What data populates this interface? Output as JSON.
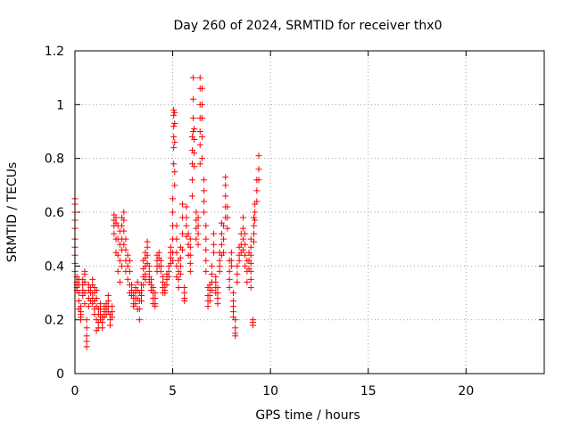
{
  "chart_data": {
    "type": "scatter",
    "title": "Day 260 of 2024, SRMTID for receiver thx0",
    "xlabel": "GPS time / hours",
    "ylabel": "SRMTID / TECUs",
    "xlim": [
      0,
      24
    ],
    "ylim": [
      0,
      1.2
    ],
    "x_ticks": [
      0,
      5,
      10,
      15,
      20
    ],
    "x_tick_labels": [
      "0",
      "5",
      "10",
      "15",
      "20"
    ],
    "y_ticks": [
      0,
      0.2,
      0.4,
      0.6,
      0.8,
      1.0,
      1.2
    ],
    "y_tick_labels": [
      "0",
      "0.2",
      "0.4",
      "0.6",
      "0.8",
      "1",
      "1.2"
    ],
    "grid": true,
    "marker": "+",
    "series": [
      {
        "name": "SRMTID",
        "color": "#ff0000",
        "clusters": [
          {
            "x": 0.0,
            "values": [
              0.65,
              0.63,
              0.6,
              0.57,
              0.54,
              0.5,
              0.47,
              0.44,
              0.41,
              0.38
            ]
          },
          {
            "x": 0.1,
            "values": [
              0.36,
              0.34,
              0.33,
              0.32,
              0.31
            ]
          },
          {
            "x": 0.2,
            "values": [
              0.35,
              0.33,
              0.3,
              0.27,
              0.24
            ]
          },
          {
            "x": 0.3,
            "values": [
              0.25,
              0.22,
              0.2,
              0.21,
              0.23
            ]
          },
          {
            "x": 0.4,
            "values": [
              0.29,
              0.31,
              0.33,
              0.35
            ]
          },
          {
            "x": 0.5,
            "values": [
              0.38,
              0.37,
              0.34,
              0.3,
              0.26
            ]
          },
          {
            "x": 0.6,
            "values": [
              0.2,
              0.17,
              0.14,
              0.12,
              0.1
            ]
          },
          {
            "x": 0.7,
            "values": [
              0.33,
              0.31,
              0.28,
              0.25
            ]
          },
          {
            "x": 0.8,
            "values": [
              0.32,
              0.3,
              0.27
            ]
          },
          {
            "x": 0.9,
            "values": [
              0.35,
              0.33,
              0.3,
              0.28,
              0.26
            ]
          },
          {
            "x": 1.0,
            "values": [
              0.32,
              0.3,
              0.27,
              0.24,
              0.22
            ]
          },
          {
            "x": 1.1,
            "values": [
              0.31,
              0.28,
              0.25,
              0.2,
              0.16
            ]
          },
          {
            "x": 1.2,
            "values": [
              0.24,
              0.22,
              0.19,
              0.17
            ]
          },
          {
            "x": 1.3,
            "values": [
              0.26,
              0.24,
              0.22,
              0.2
            ]
          },
          {
            "x": 1.4,
            "values": [
              0.21,
              0.19,
              0.17
            ]
          },
          {
            "x": 1.5,
            "values": [
              0.25,
              0.23,
              0.21
            ]
          },
          {
            "x": 1.6,
            "values": [
              0.26,
              0.24,
              0.22
            ]
          },
          {
            "x": 1.7,
            "values": [
              0.29,
              0.27,
              0.25,
              0.23
            ]
          },
          {
            "x": 1.8,
            "values": [
              0.22,
              0.2,
              0.18
            ]
          },
          {
            "x": 1.9,
            "values": [
              0.25,
              0.23,
              0.21
            ]
          },
          {
            "x": 2.0,
            "values": [
              0.59,
              0.57,
              0.55,
              0.52
            ]
          },
          {
            "x": 2.1,
            "values": [
              0.58,
              0.56,
              0.5,
              0.45
            ]
          },
          {
            "x": 2.2,
            "values": [
              0.55,
              0.5,
              0.44,
              0.38
            ]
          },
          {
            "x": 2.3,
            "values": [
              0.53,
              0.48,
              0.42,
              0.34
            ]
          },
          {
            "x": 2.4,
            "values": [
              0.58,
              0.55,
              0.5,
              0.46,
              0.4
            ]
          },
          {
            "x": 2.5,
            "values": [
              0.6,
              0.57,
              0.53,
              0.48
            ]
          },
          {
            "x": 2.6,
            "values": [
              0.5,
              0.46,
              0.42,
              0.38
            ]
          },
          {
            "x": 2.7,
            "values": [
              0.44,
              0.4,
              0.35
            ]
          },
          {
            "x": 2.8,
            "values": [
              0.42,
              0.38,
              0.33,
              0.3
            ]
          },
          {
            "x": 2.9,
            "values": [
              0.33,
              0.31,
              0.29
            ]
          },
          {
            "x": 3.0,
            "values": [
              0.3,
              0.28,
              0.26,
              0.25
            ]
          },
          {
            "x": 3.1,
            "values": [
              0.32,
              0.3,
              0.28,
              0.26
            ]
          },
          {
            "x": 3.2,
            "values": [
              0.34,
              0.31,
              0.28,
              0.24
            ]
          },
          {
            "x": 3.3,
            "values": [
              0.3,
              0.27,
              0.24,
              0.2
            ]
          },
          {
            "x": 3.4,
            "values": [
              0.33,
              0.31,
              0.29,
              0.27
            ]
          },
          {
            "x": 3.5,
            "values": [
              0.42,
              0.39,
              0.36,
              0.33
            ]
          },
          {
            "x": 3.6,
            "values": [
              0.45,
              0.43,
              0.4,
              0.37,
              0.35
            ]
          },
          {
            "x": 3.7,
            "values": [
              0.49,
              0.47,
              0.44,
              0.41
            ]
          },
          {
            "x": 3.8,
            "values": [
              0.4,
              0.38,
              0.36,
              0.34
            ]
          },
          {
            "x": 3.9,
            "values": [
              0.35,
              0.33,
              0.31
            ]
          },
          {
            "x": 4.0,
            "values": [
              0.32,
              0.3,
              0.28,
              0.26
            ]
          },
          {
            "x": 4.1,
            "values": [
              0.3,
              0.28,
              0.26,
              0.25
            ]
          },
          {
            "x": 4.2,
            "values": [
              0.44,
              0.42,
              0.4,
              0.38
            ]
          },
          {
            "x": 4.3,
            "values": [
              0.45,
              0.43,
              0.4
            ]
          },
          {
            "x": 4.4,
            "values": [
              0.42,
              0.4,
              0.38
            ]
          },
          {
            "x": 4.5,
            "values": [
              0.36,
              0.34,
              0.32,
              0.3
            ]
          },
          {
            "x": 4.6,
            "values": [
              0.33,
              0.31,
              0.3
            ]
          },
          {
            "x": 4.7,
            "values": [
              0.37,
              0.35,
              0.33
            ]
          },
          {
            "x": 4.8,
            "values": [
              0.4,
              0.38,
              0.36
            ]
          },
          {
            "x": 4.9,
            "values": [
              0.47,
              0.45,
              0.43,
              0.41
            ]
          },
          {
            "x": 5.0,
            "values": [
              0.65,
              0.6,
              0.55,
              0.5,
              0.45,
              0.42
            ]
          },
          {
            "x": 5.05,
            "values": [
              0.98,
              0.96,
              0.92,
              0.88,
              0.84,
              0.78
            ]
          },
          {
            "x": 5.1,
            "values": [
              0.97,
              0.93,
              0.86,
              0.75,
              0.7
            ]
          },
          {
            "x": 5.2,
            "values": [
              0.55,
              0.5,
              0.45,
              0.4,
              0.36
            ]
          },
          {
            "x": 5.3,
            "values": [
              0.42,
              0.38,
              0.35,
              0.32
            ]
          },
          {
            "x": 5.4,
            "values": [
              0.47,
              0.43,
              0.4,
              0.37
            ]
          },
          {
            "x": 5.5,
            "values": [
              0.63,
              0.58,
              0.52,
              0.46
            ]
          },
          {
            "x": 5.6,
            "values": [
              0.32,
              0.3,
              0.28,
              0.27
            ]
          },
          {
            "x": 5.7,
            "values": [
              0.62,
              0.58,
              0.55,
              0.51
            ]
          },
          {
            "x": 5.8,
            "values": [
              0.52,
              0.48,
              0.44
            ]
          },
          {
            "x": 5.9,
            "values": [
              0.5,
              0.47,
              0.44,
              0.41,
              0.38
            ]
          },
          {
            "x": 6.0,
            "values": [
              0.88,
              0.83,
              0.78,
              0.72,
              0.66
            ]
          },
          {
            "x": 6.05,
            "values": [
              1.1,
              1.02,
              0.95,
              0.9
            ]
          },
          {
            "x": 6.1,
            "values": [
              0.91,
              0.87,
              0.82,
              0.77
            ]
          },
          {
            "x": 6.2,
            "values": [
              0.6,
              0.57,
              0.54,
              0.5
            ]
          },
          {
            "x": 6.3,
            "values": [
              0.58,
              0.55,
              0.52,
              0.48
            ]
          },
          {
            "x": 6.4,
            "values": [
              1.1,
              1.06,
              1.0,
              0.95,
              0.9,
              0.85,
              0.78
            ]
          },
          {
            "x": 6.5,
            "values": [
              1.06,
              1.0,
              0.95,
              0.88,
              0.8
            ]
          },
          {
            "x": 6.6,
            "values": [
              0.72,
              0.68,
              0.64,
              0.6
            ]
          },
          {
            "x": 6.7,
            "values": [
              0.55,
              0.5,
              0.46,
              0.42,
              0.38
            ]
          },
          {
            "x": 6.8,
            "values": [
              0.32,
              0.29,
              0.27,
              0.25
            ]
          },
          {
            "x": 6.9,
            "values": [
              0.33,
              0.31,
              0.29,
              0.27
            ]
          },
          {
            "x": 7.0,
            "values": [
              0.4,
              0.37,
              0.34,
              0.31
            ]
          },
          {
            "x": 7.1,
            "values": [
              0.52,
              0.48,
              0.45
            ]
          },
          {
            "x": 7.2,
            "values": [
              0.36,
              0.34,
              0.32,
              0.3
            ]
          },
          {
            "x": 7.3,
            "values": [
              0.32,
              0.3,
              0.28,
              0.26
            ]
          },
          {
            "x": 7.4,
            "values": [
              0.45,
              0.42,
              0.4,
              0.38
            ]
          },
          {
            "x": 7.5,
            "values": [
              0.56,
              0.52,
              0.48,
              0.44
            ]
          },
          {
            "x": 7.6,
            "values": [
              0.55,
              0.5,
              0.45
            ]
          },
          {
            "x": 7.7,
            "values": [
              0.73,
              0.7,
              0.66,
              0.62,
              0.58
            ]
          },
          {
            "x": 7.8,
            "values": [
              0.62,
              0.58,
              0.54
            ]
          },
          {
            "x": 7.9,
            "values": [
              0.42,
              0.38,
              0.35,
              0.32
            ]
          },
          {
            "x": 8.0,
            "values": [
              0.45,
              0.42,
              0.4
            ]
          },
          {
            "x": 8.1,
            "values": [
              0.3,
              0.27,
              0.25,
              0.23,
              0.21
            ]
          },
          {
            "x": 8.2,
            "values": [
              0.2,
              0.17,
              0.15,
              0.14
            ]
          },
          {
            "x": 8.3,
            "values": [
              0.4,
              0.37,
              0.34
            ]
          },
          {
            "x": 8.4,
            "values": [
              0.47,
              0.44,
              0.42
            ]
          },
          {
            "x": 8.5,
            "values": [
              0.52,
              0.48,
              0.45
            ]
          },
          {
            "x": 8.6,
            "values": [
              0.58,
              0.54,
              0.5,
              0.46
            ]
          },
          {
            "x": 8.7,
            "values": [
              0.52,
              0.48,
              0.44,
              0.4
            ]
          },
          {
            "x": 8.8,
            "values": [
              0.42,
              0.38,
              0.34
            ]
          },
          {
            "x": 8.9,
            "values": [
              0.45,
              0.42,
              0.39
            ]
          },
          {
            "x": 9.0,
            "values": [
              0.5,
              0.47,
              0.44,
              0.41,
              0.38,
              0.35,
              0.32
            ]
          },
          {
            "x": 9.1,
            "values": [
              0.2,
              0.19,
              0.18
            ]
          },
          {
            "x": 9.15,
            "values": [
              0.58,
              0.55,
              0.52,
              0.49
            ]
          },
          {
            "x": 9.2,
            "values": [
              0.63,
              0.6,
              0.57
            ]
          },
          {
            "x": 9.3,
            "values": [
              0.72,
              0.68,
              0.64
            ]
          },
          {
            "x": 9.4,
            "values": [
              0.81,
              0.76,
              0.72
            ]
          }
        ]
      }
    ]
  }
}
